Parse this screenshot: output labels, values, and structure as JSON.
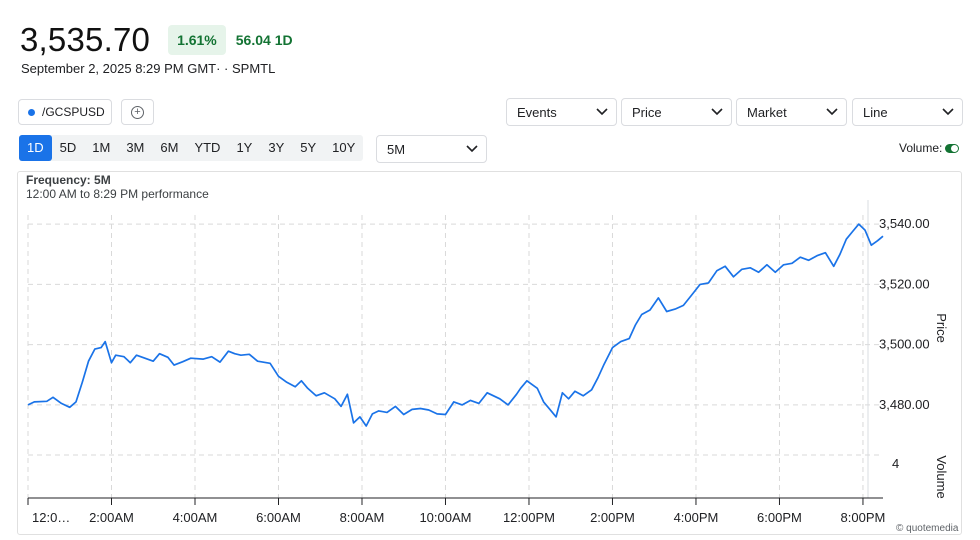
{
  "quote": {
    "price": "3,535.70",
    "change_percent": "1.61%",
    "change_value": "56.04 1D",
    "timestamp": "September 2, 2025 8:29 PM GMT· · SPMTL"
  },
  "toolbar": {
    "symbol": "/GCSPUSD",
    "add_symbol_icon": "plus-circle-icon",
    "events_label": "Events",
    "price_label": "Price",
    "market_label": "Market",
    "line_label": "Line",
    "ranges": [
      "1D",
      "5D",
      "1M",
      "3M",
      "6M",
      "YTD",
      "1Y",
      "3Y",
      "5Y",
      "10Y"
    ],
    "active_range": "1D",
    "interval_label": "5M",
    "volume_label": "Volume:",
    "volume_on": true
  },
  "chart_header": {
    "frequency": "Frequency: 5M",
    "performance": "12:00 AM to 8:29 PM performance"
  },
  "colors": {
    "line": "#1a73e8",
    "positive": "#137333",
    "positive_bg": "#e6f4ea",
    "grid": "#d9d9d9"
  },
  "chart_data": {
    "type": "line",
    "x_unit": "hours since 12:00 AM",
    "xlim": [
      0,
      20.48
    ],
    "x_ticks": [
      0,
      2,
      4,
      6,
      8,
      10,
      12,
      14,
      16,
      18,
      20
    ],
    "x_tick_labels": [
      "12:0…",
      "2:00AM",
      "4:00AM",
      "6:00AM",
      "8:00AM",
      "10:00AM",
      "12:00PM",
      "2:00PM",
      "4:00PM",
      "6:00PM",
      "8:00PM"
    ],
    "ylim": [
      3470,
      3548
    ],
    "y_ticks": [
      3480,
      3500,
      3520,
      3540
    ],
    "y_tick_labels": [
      "3,480.00",
      "3,500.00",
      "3,520.00",
      "3,540.00"
    ],
    "ylabel": "Price",
    "volume_label": "Volume",
    "volume_tick_label": "4",
    "grid": true,
    "series": [
      {
        "name": "/GCSPUSD",
        "x": [
          0.0,
          0.15,
          0.45,
          0.6,
          0.8,
          1.0,
          1.15,
          1.3,
          1.45,
          1.6,
          1.75,
          1.85,
          2.0,
          2.1,
          2.3,
          2.45,
          2.6,
          2.8,
          3.0,
          3.15,
          3.35,
          3.5,
          3.7,
          3.9,
          4.2,
          4.4,
          4.6,
          4.8,
          4.95,
          5.1,
          5.3,
          5.5,
          5.8,
          6.0,
          6.2,
          6.4,
          6.55,
          6.7,
          6.9,
          7.1,
          7.35,
          7.5,
          7.65,
          7.8,
          7.95,
          8.1,
          8.25,
          8.4,
          8.6,
          8.8,
          9.0,
          9.2,
          9.4,
          9.6,
          9.8,
          10.0,
          10.2,
          10.4,
          10.6,
          10.8,
          11.0,
          11.3,
          11.5,
          11.7,
          11.8,
          11.95,
          12.2,
          12.35,
          12.5,
          12.65,
          12.8,
          12.95,
          13.1,
          13.3,
          13.5,
          13.65,
          13.8,
          14.0,
          14.2,
          14.4,
          14.55,
          14.7,
          14.9,
          15.1,
          15.3,
          15.5,
          15.7,
          15.9,
          16.1,
          16.3,
          16.5,
          16.7,
          16.9,
          17.1,
          17.3,
          17.5,
          17.7,
          17.9,
          18.1,
          18.3,
          18.5,
          18.7,
          18.9,
          19.1,
          19.3,
          19.45,
          19.6,
          19.75,
          19.9,
          20.05,
          20.2,
          20.35,
          20.48
        ],
        "y": [
          3480.0,
          3481.0,
          3481.2,
          3482.5,
          3480.5,
          3479.2,
          3481.0,
          3487.5,
          3494.5,
          3498.5,
          3499.0,
          3501.0,
          3494.0,
          3496.5,
          3496.0,
          3494.0,
          3496.5,
          3495.5,
          3494.5,
          3497.0,
          3495.8,
          3493.2,
          3494.3,
          3495.5,
          3495.2,
          3496.0,
          3494.2,
          3497.8,
          3497.0,
          3496.5,
          3496.8,
          3494.5,
          3493.8,
          3489.5,
          3487.5,
          3486.0,
          3488.0,
          3485.5,
          3483.0,
          3484.0,
          3482.0,
          3479.5,
          3483.5,
          3474.0,
          3476.0,
          3473.0,
          3477.0,
          3478.0,
          3477.5,
          3479.5,
          3476.8,
          3478.5,
          3478.8,
          3478.3,
          3477.0,
          3476.8,
          3481.0,
          3480.0,
          3481.5,
          3480.5,
          3484.0,
          3482.0,
          3480.0,
          3483.5,
          3485.5,
          3488.0,
          3485.5,
          3481.0,
          3478.5,
          3476.0,
          3484.0,
          3482.0,
          3484.5,
          3483.0,
          3485.0,
          3489.0,
          3493.5,
          3499.0,
          3501.0,
          3502.0,
          3506.5,
          3510.0,
          3511.5,
          3515.5,
          3511.0,
          3511.8,
          3513.0,
          3516.5,
          3520.0,
          3520.5,
          3524.5,
          3526.0,
          3522.5,
          3525.0,
          3525.5,
          3524.0,
          3526.5,
          3524.0,
          3526.5,
          3527.0,
          3529.0,
          3528.0,
          3529.5,
          3530.5,
          3526.0,
          3530.0,
          3535.0,
          3537.5,
          3540.0,
          3538.0,
          3533.0,
          3534.5,
          3536.0
        ]
      }
    ]
  },
  "footer": {
    "copyright": "© quotemedia"
  }
}
